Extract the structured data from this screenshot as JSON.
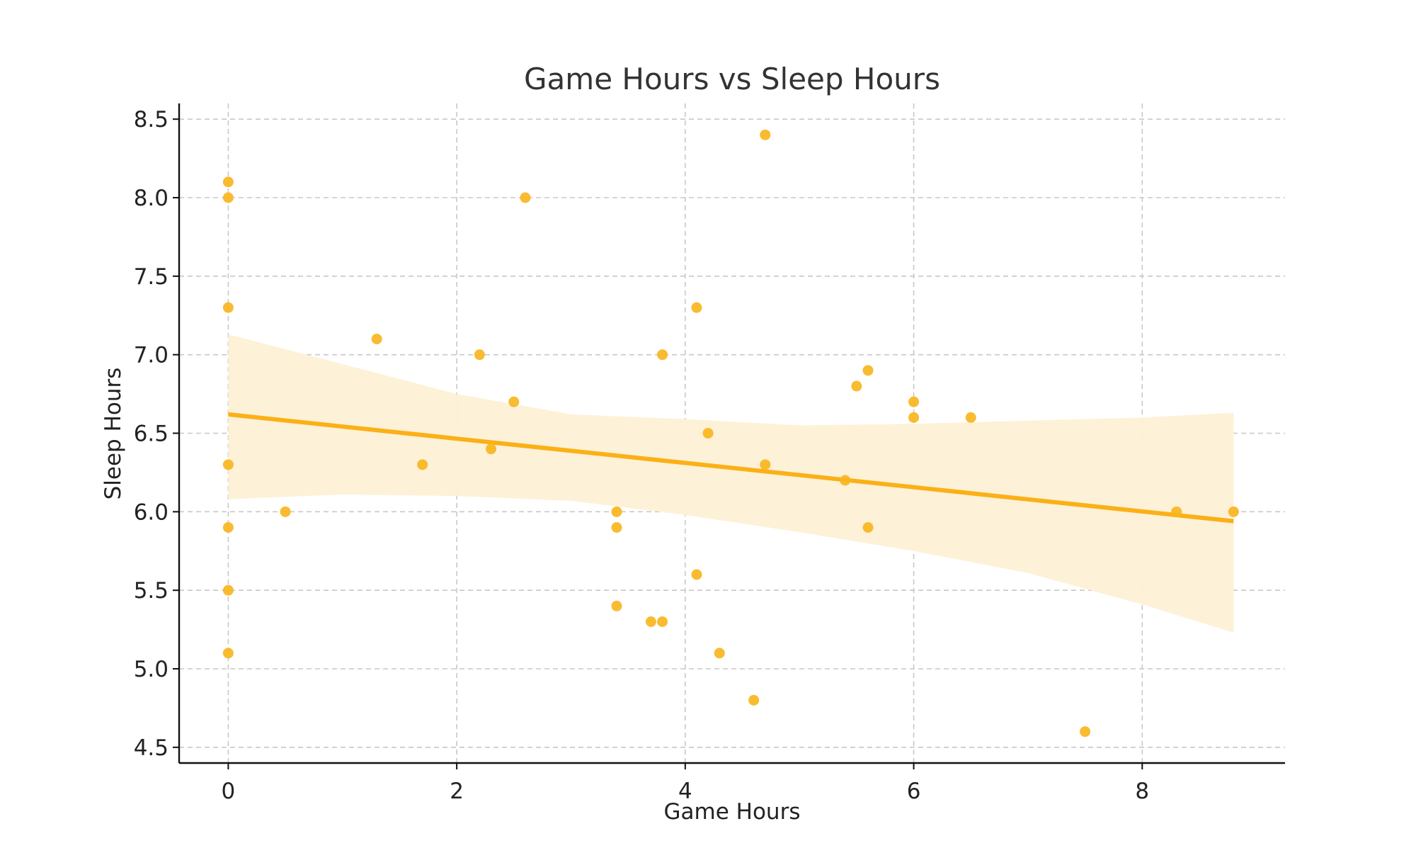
{
  "chart_data": {
    "type": "scatter",
    "title": "Game Hours vs Sleep Hours",
    "xlabel": "Game Hours",
    "ylabel": "Sleep Hours",
    "xlim": [
      -0.43,
      9.25
    ],
    "ylim": [
      4.4,
      8.6
    ],
    "x_ticks": [
      0,
      2,
      4,
      6,
      8
    ],
    "x_tick_labels": [
      "0",
      "2",
      "4",
      "6",
      "8"
    ],
    "y_ticks": [
      4.5,
      5.0,
      5.5,
      6.0,
      6.5,
      7.0,
      7.5,
      8.0,
      8.5
    ],
    "y_tick_labels": [
      "4.5",
      "5.0",
      "5.5",
      "6.0",
      "6.5",
      "7.0",
      "7.5",
      "8.0",
      "8.5"
    ],
    "grid": true,
    "point_color": "#f9b51e",
    "line_color": "#fbb016",
    "band_color": "#fdf0d5",
    "points": [
      {
        "x": 0,
        "y": 8.1
      },
      {
        "x": 0,
        "y": 8.0
      },
      {
        "x": 0,
        "y": 7.3
      },
      {
        "x": 0,
        "y": 6.3
      },
      {
        "x": 0,
        "y": 5.9
      },
      {
        "x": 0,
        "y": 5.5
      },
      {
        "x": 0,
        "y": 5.1
      },
      {
        "x": 0.5,
        "y": 6.0
      },
      {
        "x": 1.3,
        "y": 7.1
      },
      {
        "x": 1.7,
        "y": 6.3
      },
      {
        "x": 2.2,
        "y": 7.0
      },
      {
        "x": 2.3,
        "y": 6.4
      },
      {
        "x": 2.5,
        "y": 6.7
      },
      {
        "x": 2.6,
        "y": 8.0
      },
      {
        "x": 3.4,
        "y": 6.0
      },
      {
        "x": 3.4,
        "y": 5.9
      },
      {
        "x": 3.4,
        "y": 5.4
      },
      {
        "x": 3.7,
        "y": 5.3
      },
      {
        "x": 3.8,
        "y": 5.3
      },
      {
        "x": 3.8,
        "y": 7.0
      },
      {
        "x": 4.1,
        "y": 7.3
      },
      {
        "x": 4.1,
        "y": 5.6
      },
      {
        "x": 4.2,
        "y": 6.5
      },
      {
        "x": 4.3,
        "y": 5.1
      },
      {
        "x": 4.6,
        "y": 4.8
      },
      {
        "x": 4.7,
        "y": 8.4
      },
      {
        "x": 4.7,
        "y": 6.3
      },
      {
        "x": 5.4,
        "y": 6.2
      },
      {
        "x": 5.5,
        "y": 6.8
      },
      {
        "x": 5.6,
        "y": 6.9
      },
      {
        "x": 5.6,
        "y": 5.9
      },
      {
        "x": 6.0,
        "y": 6.7
      },
      {
        "x": 6.0,
        "y": 6.6
      },
      {
        "x": 6.5,
        "y": 6.6
      },
      {
        "x": 7.5,
        "y": 4.6
      },
      {
        "x": 8.3,
        "y": 6.0
      },
      {
        "x": 8.8,
        "y": 6.0
      }
    ],
    "regression": {
      "x": [
        0,
        8.8
      ],
      "y": [
        6.62,
        5.94
      ]
    },
    "confidence_band": {
      "x": [
        0,
        1,
        2,
        3,
        4,
        5,
        6,
        7,
        8,
        8.8
      ],
      "upper": [
        7.13,
        6.94,
        6.75,
        6.62,
        6.59,
        6.55,
        6.56,
        6.58,
        6.6,
        6.63
      ],
      "lower": [
        6.08,
        6.11,
        6.1,
        6.07,
        5.98,
        5.87,
        5.75,
        5.61,
        5.41,
        5.23
      ]
    }
  }
}
